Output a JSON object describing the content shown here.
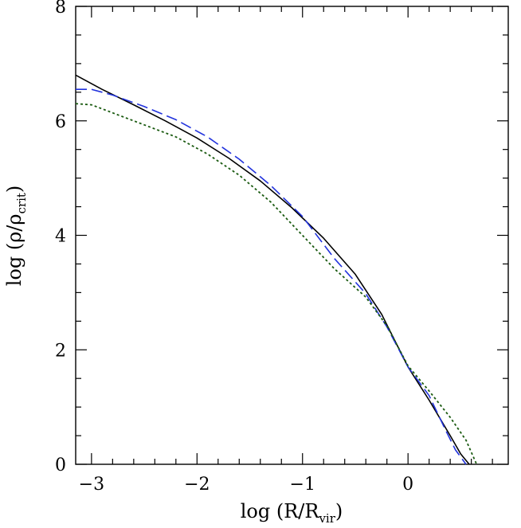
{
  "chart_data": {
    "type": "line",
    "xlabel": {
      "prefix": "log (R/R",
      "sub": "vir",
      "suffix": ")"
    },
    "ylabel": {
      "prefix": "log (ρ/ρ",
      "sub": "crit",
      "suffix": ")"
    },
    "xlim": [
      -3.15,
      0.95
    ],
    "ylim": [
      0,
      8
    ],
    "xticks_major": [
      -3,
      -2,
      -1,
      0
    ],
    "xtick_labels": [
      "−3",
      "−2",
      "−1",
      "0"
    ],
    "yticks_major": [
      0,
      2,
      4,
      6,
      8
    ],
    "ytick_labels": [
      "0",
      "2",
      "4",
      "6",
      "8"
    ],
    "grid": false,
    "legend": "none",
    "series": [
      {
        "style": "solid",
        "color": "#000000",
        "x": [
          -3.15,
          -2.9,
          -2.6,
          -2.3,
          -2.0,
          -1.7,
          -1.4,
          -1.1,
          -0.8,
          -0.5,
          -0.25,
          0.0,
          0.2,
          0.4,
          0.5,
          0.58
        ],
        "y": [
          6.8,
          6.55,
          6.28,
          6.0,
          5.7,
          5.35,
          4.95,
          4.48,
          3.95,
          3.32,
          2.62,
          1.7,
          1.12,
          0.5,
          0.18,
          0.0
        ]
      },
      {
        "style": "dashed",
        "color": "#2233dd",
        "x": [
          -3.15,
          -3.0,
          -2.8,
          -2.5,
          -2.2,
          -1.9,
          -1.6,
          -1.3,
          -1.0,
          -0.7,
          -0.4,
          -0.2,
          0.0,
          0.2,
          0.35,
          0.45,
          0.55
        ],
        "y": [
          6.55,
          6.55,
          6.45,
          6.25,
          6.02,
          5.72,
          5.33,
          4.87,
          4.33,
          3.6,
          2.98,
          2.4,
          1.7,
          1.2,
          0.62,
          0.25,
          0.0
        ]
      },
      {
        "style": "dotted",
        "color": "#1a5a10",
        "x": [
          -3.15,
          -3.0,
          -2.8,
          -2.5,
          -2.2,
          -1.9,
          -1.6,
          -1.3,
          -1.0,
          -0.7,
          -0.4,
          -0.2,
          0.0,
          0.2,
          0.4,
          0.55,
          0.65
        ],
        "y": [
          6.3,
          6.28,
          6.14,
          5.93,
          5.72,
          5.42,
          5.05,
          4.58,
          4.0,
          3.42,
          2.92,
          2.42,
          1.72,
          1.28,
          0.82,
          0.42,
          0.0
        ]
      }
    ]
  }
}
